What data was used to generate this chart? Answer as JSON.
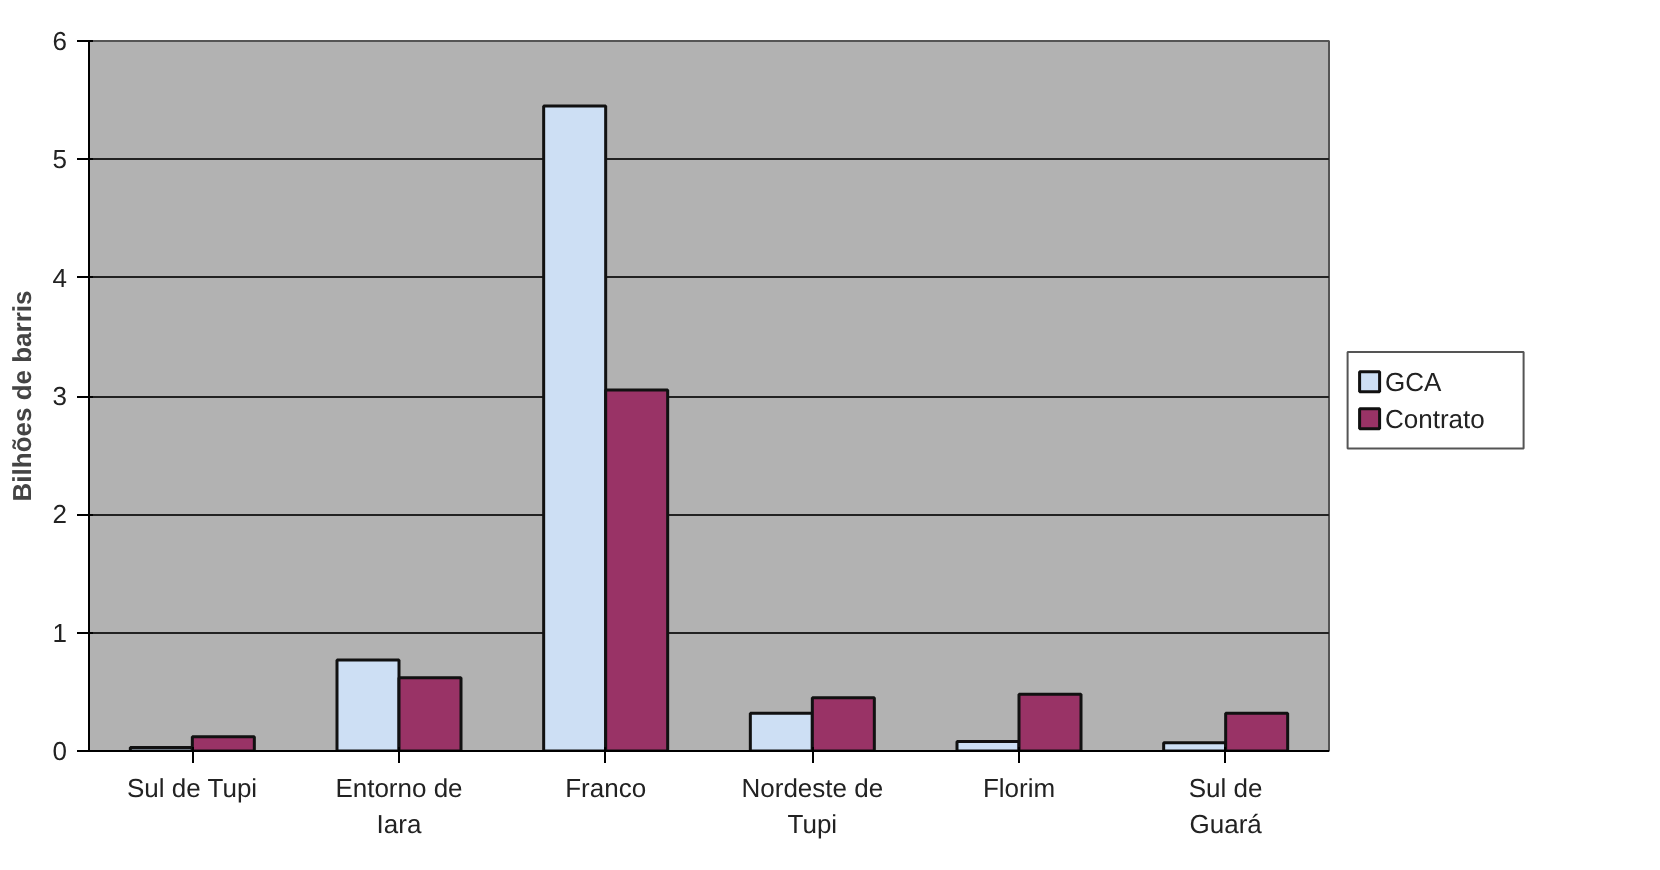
{
  "chart_data": {
    "type": "bar",
    "ylabel": "Bilhões de barris",
    "categories": [
      "Sul de Tupi",
      "Entorno de\nIara",
      "Franco",
      "Nordeste de\nTupi",
      "Florim",
      "Sul de\nGuará"
    ],
    "series": [
      {
        "name": "GCA",
        "color": "#cddff4",
        "values": [
          0.03,
          0.77,
          5.45,
          0.32,
          0.08,
          0.07
        ]
      },
      {
        "name": "Contrato",
        "color": "#993366",
        "values": [
          0.12,
          0.62,
          3.05,
          0.45,
          0.48,
          0.32
        ]
      }
    ],
    "ylim": [
      0,
      6
    ],
    "yticks": [
      0,
      1,
      2,
      3,
      4,
      5,
      6
    ],
    "grid": "y",
    "legend": "right"
  }
}
